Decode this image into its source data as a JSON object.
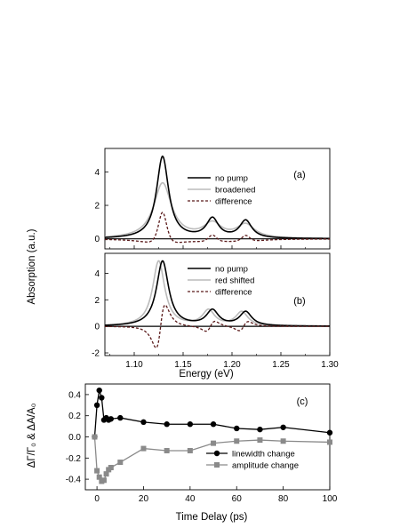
{
  "chart_data": [
    {
      "panel": "(a)",
      "type": "line",
      "xlim": [
        1.07,
        1.3
      ],
      "ylim": [
        -0.6,
        5.4
      ],
      "yticks": [
        0,
        2,
        4
      ],
      "ylabel": "Absorption (a.u.)",
      "series": [
        {
          "name": "no pump",
          "color": "#000000",
          "dash": "solid",
          "peaks": [
            [
              1.129,
              4.9,
              0.0075
            ],
            [
              1.18,
              1.15,
              0.0075
            ],
            [
              1.214,
              1.05,
              0.0075
            ]
          ]
        },
        {
          "name": "broadened",
          "color": "#bbbbbb",
          "dash": "solid",
          "peaks": [
            [
              1.129,
              3.3,
              0.011
            ],
            [
              1.18,
              0.85,
              0.011
            ],
            [
              1.214,
              0.8,
              0.011
            ]
          ]
        },
        {
          "name": "difference",
          "color": "#5a1a1a",
          "dash": "dashed",
          "derived": "no pump minus broadened",
          "peaks_at": [
            1.129,
            1.18,
            1.214
          ],
          "peak_values": [
            1.6,
            0.3,
            0.25
          ]
        }
      ],
      "legend": [
        "no pump",
        "broadened",
        "difference"
      ]
    },
    {
      "panel": "(b)",
      "type": "line",
      "xlim": [
        1.07,
        1.3
      ],
      "xticks": [
        1.1,
        1.15,
        1.2,
        1.25,
        1.3
      ],
      "xtick_labels": [
        "1.10",
        "1.15",
        "1.20",
        "1.25",
        "1.30"
      ],
      "ylim": [
        -2.2,
        5.5
      ],
      "yticks": [
        -2,
        0,
        2,
        4
      ],
      "ylabel": "Absorption (a.u.)",
      "xlabel": "Energy (eV)",
      "series": [
        {
          "name": "no pump",
          "color": "#000000",
          "dash": "solid",
          "peaks": [
            [
              1.129,
              4.9,
              0.0075
            ],
            [
              1.18,
              1.15,
              0.0075
            ],
            [
              1.214,
              1.05,
              0.0075
            ]
          ]
        },
        {
          "name": "red shifted",
          "color": "#bbbbbb",
          "dash": "solid",
          "peaks": [
            [
              1.125,
              4.9,
              0.0075
            ],
            [
              1.176,
              1.15,
              0.0075
            ],
            [
              1.21,
              1.05,
              0.0075
            ]
          ]
        },
        {
          "name": "difference",
          "color": "#5a1a1a",
          "dash": "dashed",
          "derived": "no pump minus red shifted",
          "min": -1.8,
          "max": 1.7
        }
      ],
      "legend": [
        "no pump",
        "red shifted",
        "difference"
      ]
    },
    {
      "panel": "(c)",
      "type": "line",
      "xlim": [
        -5,
        100
      ],
      "xticks": [
        0,
        20,
        40,
        60,
        80,
        100
      ],
      "ylim": [
        -0.5,
        0.5
      ],
      "yticks": [
        -0.4,
        -0.2,
        0.0,
        0.2,
        0.4
      ],
      "ytick_labels": [
        "-0.4",
        "-0.2",
        "0.0",
        "0.2",
        "0.4"
      ],
      "xlabel": "Time Delay (ps)",
      "ylabel": "ΔΓ/Γ₀  &  ΔA/A₀",
      "series": [
        {
          "name": "linewidth change",
          "color": "#000000",
          "marker": "circle",
          "x": [
            -1,
            0,
            1,
            2,
            3,
            4,
            5,
            6,
            10,
            20,
            30,
            40,
            50,
            60,
            70,
            80,
            100
          ],
          "y": [
            0.0,
            0.3,
            0.44,
            0.37,
            0.16,
            0.18,
            0.16,
            0.17,
            0.18,
            0.14,
            0.12,
            0.12,
            0.12,
            0.08,
            0.07,
            0.09,
            0.04
          ]
        },
        {
          "name": "amplitude change",
          "color": "#8a8a8a",
          "marker": "square",
          "x": [
            -1,
            0,
            1,
            2,
            3,
            4,
            5,
            6,
            10,
            20,
            30,
            40,
            50,
            60,
            70,
            80,
            100
          ],
          "y": [
            0.0,
            -0.32,
            -0.38,
            -0.42,
            -0.41,
            -0.35,
            -0.31,
            -0.29,
            -0.24,
            -0.11,
            -0.13,
            -0.13,
            -0.06,
            -0.04,
            -0.03,
            -0.04,
            -0.05
          ]
        }
      ],
      "legend": [
        "linewidth change",
        "amplitude change"
      ]
    }
  ]
}
